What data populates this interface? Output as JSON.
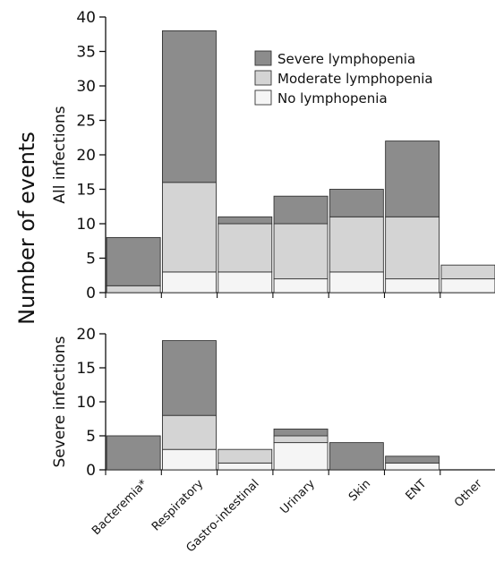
{
  "ylabel": "Number of events",
  "chart_data": [
    {
      "type": "bar",
      "stacked": true,
      "ylabel": "All infections",
      "ylim": [
        0,
        40
      ],
      "yticks": [
        0,
        5,
        10,
        15,
        20,
        25,
        30,
        35,
        40
      ],
      "categories": [
        "Bacteremia*",
        "Respiratory",
        "Gastro-intestinal",
        "Urinary",
        "Skin",
        "ENT",
        "Other"
      ],
      "series": [
        {
          "name": "No lymphopenia",
          "color": "#f5f5f5",
          "values": [
            0,
            3,
            3,
            2,
            3,
            2,
            2
          ]
        },
        {
          "name": "Moderate lymphopenia",
          "color": "#d4d4d4",
          "values": [
            1,
            13,
            7,
            8,
            8,
            9,
            2
          ]
        },
        {
          "name": "Severe lymphopenia",
          "color": "#8c8c8c",
          "values": [
            7,
            22,
            1,
            4,
            4,
            11,
            0
          ]
        }
      ],
      "legend": [
        "Severe lymphopenia",
        "Moderate lymphopenia",
        "No lymphopenia"
      ],
      "legend_position": "top-right"
    },
    {
      "type": "bar",
      "stacked": true,
      "ylabel": "Severe infections",
      "ylim": [
        0,
        20
      ],
      "yticks": [
        0,
        5,
        10,
        15,
        20
      ],
      "categories": [
        "Bacteremia*",
        "Respiratory",
        "Gastro-intestinal",
        "Urinary",
        "Skin",
        "ENT",
        "Other"
      ],
      "series": [
        {
          "name": "No lymphopenia",
          "color": "#f5f5f5",
          "values": [
            0,
            3,
            1,
            4,
            0,
            1,
            0
          ]
        },
        {
          "name": "Moderate lymphopenia",
          "color": "#d4d4d4",
          "values": [
            0,
            5,
            2,
            1,
            0,
            0,
            0
          ]
        },
        {
          "name": "Severe lymphopenia",
          "color": "#8c8c8c",
          "values": [
            5,
            11,
            0,
            1,
            4,
            1,
            0
          ]
        }
      ]
    }
  ]
}
